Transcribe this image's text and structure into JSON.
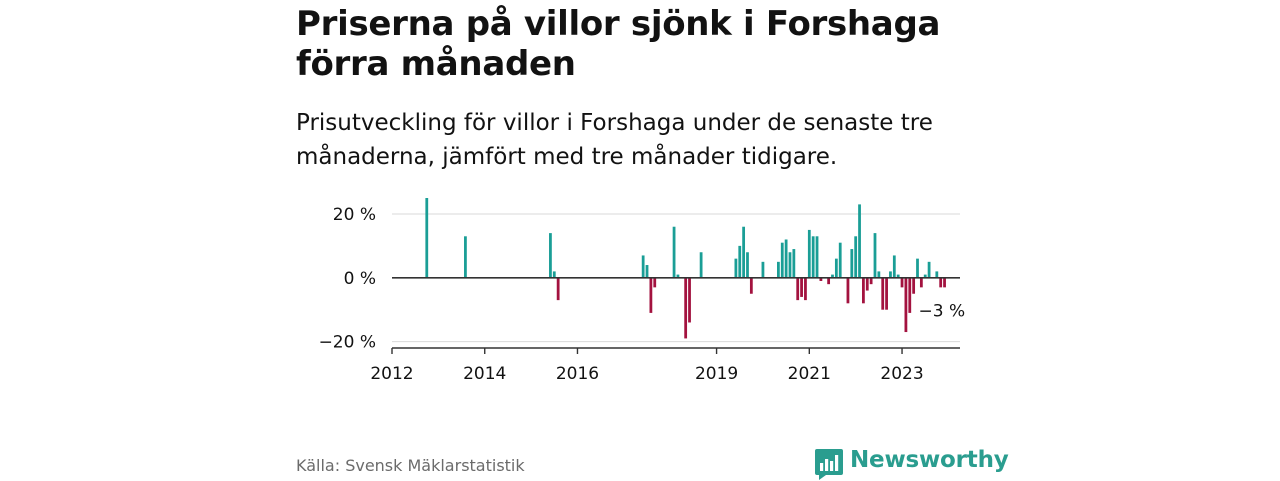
{
  "header": {
    "title": "Priserna på villor sjönk i Forshaga förra månaden",
    "subtitle": "Prisutveckling för villor i Forshaga under de senaste tre månaderna, jämfört med tre månader tidigare."
  },
  "footer": {
    "source": "Källa: Svensk Mäklarstatistik",
    "brand": "Newsworthy"
  },
  "colors": {
    "positive": "#1a9e96",
    "negative": "#a3123f",
    "brand": "#2a9d8f",
    "grid": "#d9d9d9",
    "axis": "#333333"
  },
  "chart_data": {
    "type": "bar",
    "y_ticks": [
      20,
      0,
      -20
    ],
    "y_tick_labels": [
      "20 %",
      "0 %",
      "−20 %"
    ],
    "ylim": [
      -22,
      25
    ],
    "x_ticks": [
      "2012",
      "2014",
      "2016",
      "2019",
      "2021",
      "2023"
    ],
    "xlim": [
      "2012-01",
      "2024-04"
    ],
    "end_label": "−3 %",
    "grid": true,
    "series": [
      {
        "x": [
          "2012-10",
          "2013-08",
          "2015-06",
          "2015-07",
          "2015-08",
          "2017-06",
          "2017-07",
          "2017-08",
          "2017-09",
          "2018-02",
          "2018-03",
          "2018-05",
          "2018-06",
          "2018-09",
          "2019-06",
          "2019-07",
          "2019-08",
          "2019-09",
          "2019-10",
          "2020-01",
          "2020-05",
          "2020-06",
          "2020-07",
          "2020-08",
          "2020-09",
          "2020-10",
          "2020-11",
          "2020-12",
          "2021-01",
          "2021-02",
          "2021-03",
          "2021-04",
          "2021-05",
          "2021-06",
          "2021-07",
          "2021-08",
          "2021-09",
          "2021-10",
          "2021-11",
          "2021-12",
          "2022-01",
          "2022-02",
          "2022-03",
          "2022-04",
          "2022-05",
          "2022-06",
          "2022-07",
          "2022-08",
          "2022-09",
          "2022-10",
          "2022-11",
          "2022-12",
          "2023-01",
          "2023-02",
          "2023-03",
          "2023-04",
          "2023-05",
          "2023-06",
          "2023-07",
          "2023-08",
          "2023-09",
          "2023-10",
          "2023-11",
          "2023-12"
        ],
        "values": [
          25,
          13,
          14,
          2,
          -7,
          7,
          4,
          -11,
          -3,
          16,
          1,
          -19,
          -14,
          8,
          6,
          10,
          16,
          8,
          -5,
          5,
          5,
          11,
          12,
          8,
          9,
          -7,
          -6,
          -7,
          15,
          13,
          13,
          -1,
          0,
          -2,
          1,
          6,
          11,
          0,
          -8,
          9,
          13,
          23,
          -8,
          -4,
          -2,
          14,
          2,
          -10,
          -10,
          2,
          7,
          1,
          -3,
          -17,
          -11,
          -5,
          6,
          -3,
          1,
          5,
          0,
          2,
          -3,
          -3
        ]
      }
    ]
  }
}
